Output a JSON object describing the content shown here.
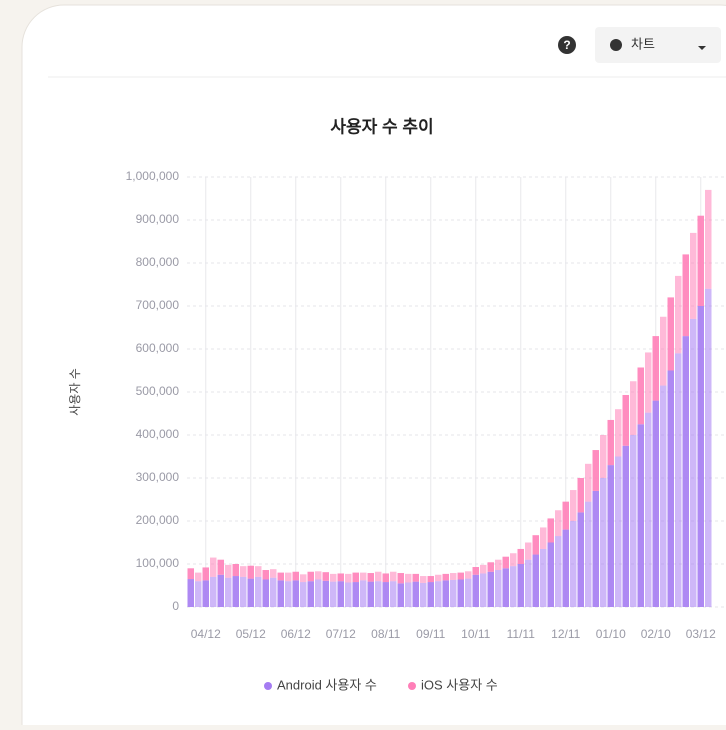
{
  "toolbar": {
    "view_label": "차트"
  },
  "chart_data": {
    "type": "stacked_bar",
    "title": "사용자 수 추이",
    "y_label": "사용자 수",
    "categories": [
      null,
      null,
      "04/12",
      null,
      null,
      null,
      null,
      null,
      "05/12",
      null,
      null,
      null,
      null,
      null,
      "06/12",
      null,
      null,
      null,
      null,
      null,
      "07/12",
      null,
      null,
      null,
      null,
      null,
      "08/11",
      null,
      null,
      null,
      null,
      null,
      "09/11",
      null,
      null,
      null,
      null,
      null,
      "10/11",
      null,
      null,
      null,
      null,
      null,
      "11/11",
      null,
      null,
      null,
      null,
      null,
      "12/11",
      null,
      null,
      null,
      null,
      null,
      "01/10",
      null,
      null,
      null,
      null,
      null,
      "02/10",
      null,
      null,
      null,
      null,
      null,
      "03/12",
      null
    ],
    "series": [
      {
        "name": "Android 사용자 수",
        "color": "#a57cf2",
        "values": [
          65000,
          60000,
          62000,
          70000,
          75000,
          68000,
          72000,
          70000,
          66000,
          70000,
          64000,
          68000,
          62000,
          60000,
          62000,
          58000,
          60000,
          64000,
          61000,
          59000,
          60000,
          57000,
          58000,
          62000,
          59000,
          60000,
          58000,
          60000,
          55000,
          57000,
          59000,
          56000,
          58000,
          60000,
          62000,
          63000,
          64000,
          66000,
          75000,
          78000,
          82000,
          86000,
          90000,
          95000,
          100000,
          110000,
          122000,
          135000,
          150000,
          165000,
          180000,
          200000,
          220000,
          245000,
          270000,
          300000,
          330000,
          350000,
          375000,
          400000,
          425000,
          452000,
          480000,
          515000,
          550000,
          590000,
          630000,
          670000,
          700000,
          740000
        ]
      },
      {
        "name": "iOS 사용자 수",
        "color": "#ff7fb8",
        "values": [
          25000,
          20000,
          30000,
          45000,
          35000,
          30000,
          28000,
          25000,
          30000,
          25000,
          22000,
          20000,
          18000,
          20000,
          20000,
          18000,
          22000,
          19000,
          20000,
          18000,
          18000,
          20000,
          22000,
          18000,
          20000,
          22000,
          20000,
          22000,
          24000,
          20000,
          18000,
          16000,
          14000,
          15000,
          15000,
          16000,
          16000,
          17000,
          18000,
          20000,
          22000,
          24000,
          27000,
          30000,
          35000,
          40000,
          45000,
          50000,
          56000,
          60000,
          65000,
          72000,
          80000,
          88000,
          95000,
          100000,
          105000,
          110000,
          118000,
          125000,
          132000,
          140000,
          150000,
          160000,
          170000,
          180000,
          190000,
          200000,
          210000,
          230000
        ]
      }
    ],
    "ylim": [
      0,
      1000000
    ],
    "yticks": [
      0,
      {
        "value": 100000,
        "label": "100,000"
      },
      {
        "value": 200000,
        "label": "200,000"
      },
      {
        "value": 300000,
        "label": "300,000"
      },
      {
        "value": 400000,
        "label": "400,000"
      },
      {
        "value": 500000,
        "label": "500,000"
      },
      {
        "value": 600000,
        "label": "600,000"
      },
      {
        "value": 700000,
        "label": "700,000"
      },
      {
        "value": 800000,
        "label": "800,000"
      },
      {
        "value": 900000,
        "label": "900,000"
      },
      {
        "value": 1000000,
        "label": "1,000,000"
      }
    ],
    "grid": true,
    "legend": "bottom"
  }
}
